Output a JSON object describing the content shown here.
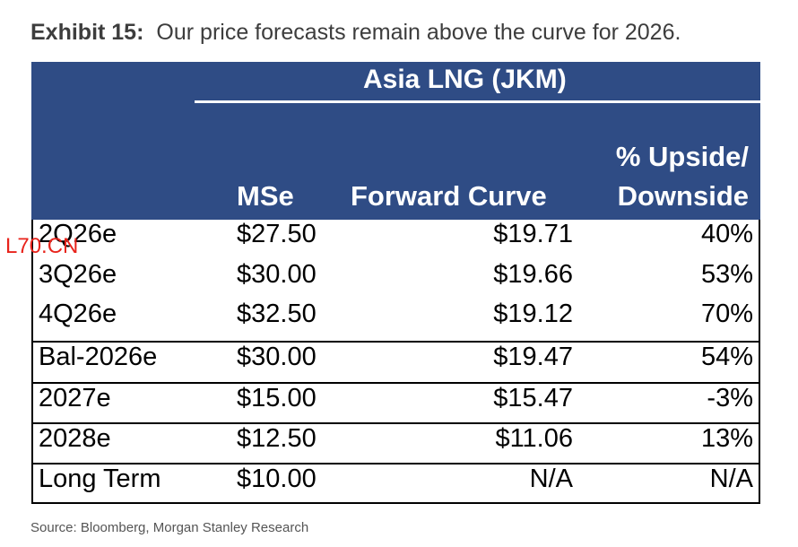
{
  "exhibit": {
    "label": "Exhibit 15:",
    "title": "Our price forecasts remain above the curve for 2026."
  },
  "table": {
    "group_header": "Asia LNG (JKM)",
    "columns": {
      "mse": "MSe",
      "forward_curve": "Forward Curve",
      "upside_line1": "% Upside/",
      "upside_line2": "Downside"
    },
    "rows": [
      {
        "label": "2Q26e",
        "mse": "$27.50",
        "forward": "$19.71",
        "upside": "40%"
      },
      {
        "label": "3Q26e",
        "mse": "$30.00",
        "forward": "$19.66",
        "upside": "53%"
      },
      {
        "label": "4Q26e",
        "mse": "$32.50",
        "forward": "$19.12",
        "upside": "70%"
      },
      {
        "label": "Bal-2026e",
        "mse": "$30.00",
        "forward": "$19.47",
        "upside": "54%"
      },
      {
        "label": "2027e",
        "mse": "$15.00",
        "forward": "$15.47",
        "upside": "-3%"
      },
      {
        "label": "2028e",
        "mse": "$12.50",
        "forward": "$11.06",
        "upside": "13%"
      },
      {
        "label": "Long Term",
        "mse": "$10.00",
        "forward": "N/A",
        "upside": "N/A"
      }
    ]
  },
  "stamp": "L70.CN",
  "source": "Source: Bloomberg, Morgan Stanley Research",
  "colors": {
    "header_bg": "#2f4c85",
    "header_text": "#ffffff",
    "stamp": "#e8231b"
  }
}
